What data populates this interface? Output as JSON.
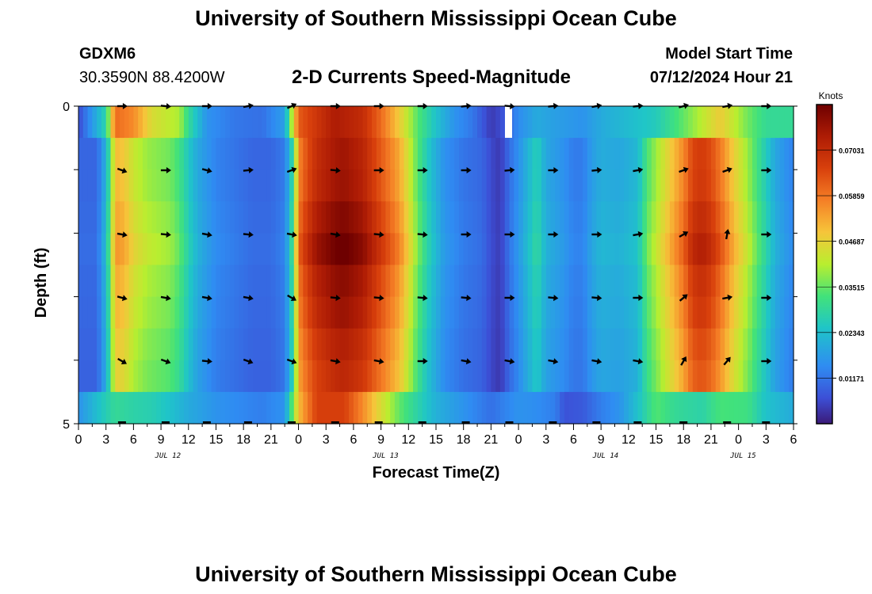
{
  "page": {
    "title": "University of Southern Mississippi Ocean Cube",
    "title_bottom": "University of Southern Mississippi Ocean Cube",
    "station_id": "GDXM6",
    "station_coords": "30.3590N  88.4200W",
    "model_start_label": "Model Start Time",
    "model_start_value": "07/12/2024 Hour 21",
    "subtitle": "2-D Currents Speed-Magnitude"
  },
  "chart_data": {
    "type": "heatmap",
    "title": "2-D Currents Speed-Magnitude",
    "xlabel": "Forecast Time(Z)",
    "ylabel": "Depth (ft)",
    "colorbar_label": "Knots",
    "colorbar_ticks": [
      "0.07031",
      "0.05859",
      "0.04687",
      "0.03515",
      "0.02343",
      "0.01171"
    ],
    "colorbar_values": [
      0.07031,
      0.05859,
      0.04687,
      0.03515,
      0.02343,
      0.01171
    ],
    "vmin": 0.0,
    "vmax": 0.082,
    "ylim": [
      0,
      5
    ],
    "y_ticks": [
      "0",
      "5"
    ],
    "x_ticks": [
      "0",
      "3",
      "6",
      "9",
      "12",
      "15",
      "18",
      "21",
      "0",
      "3",
      "6",
      "9",
      "12",
      "15",
      "18",
      "21",
      "0",
      "3",
      "6",
      "9",
      "12",
      "15",
      "18",
      "21",
      "0",
      "3",
      "6"
    ],
    "date_labels": [
      {
        "text": "JUL 12",
        "hour": 19.5
      },
      {
        "text": "JUL 13",
        "hour": 67
      },
      {
        "text": "JUL 14",
        "hour": 115
      },
      {
        "text": "JUL 15",
        "hour": 145
      }
    ],
    "hours_total": 156,
    "depth_levels": 10,
    "speed_profile": [
      [
        0,
        0.01
      ],
      [
        4,
        0.01
      ],
      [
        6,
        0.022
      ],
      [
        7,
        0.035
      ],
      [
        8,
        0.052
      ],
      [
        10,
        0.05
      ],
      [
        12,
        0.044
      ],
      [
        15,
        0.04
      ],
      [
        20,
        0.037
      ],
      [
        22,
        0.033
      ],
      [
        24,
        0.026
      ],
      [
        26,
        0.02
      ],
      [
        30,
        0.014
      ],
      [
        34,
        0.012
      ],
      [
        38,
        0.01
      ],
      [
        42,
        0.01
      ],
      [
        45,
        0.013
      ],
      [
        46,
        0.022
      ],
      [
        47,
        0.033
      ],
      [
        48,
        0.058
      ],
      [
        50,
        0.066
      ],
      [
        52,
        0.072
      ],
      [
        56,
        0.077
      ],
      [
        58,
        0.078
      ],
      [
        62,
        0.074
      ],
      [
        66,
        0.064
      ],
      [
        70,
        0.054
      ],
      [
        72,
        0.045
      ],
      [
        74,
        0.035
      ],
      [
        76,
        0.027
      ],
      [
        78,
        0.021
      ],
      [
        80,
        0.016
      ],
      [
        84,
        0.012
      ],
      [
        88,
        0.01
      ],
      [
        90,
        0.006
      ],
      [
        92,
        0.004
      ],
      [
        94,
        0.011
      ],
      [
        96,
        0.016
      ],
      [
        98,
        0.022
      ],
      [
        100,
        0.028
      ],
      [
        102,
        0.02
      ],
      [
        104,
        0.018
      ],
      [
        106,
        0.016
      ],
      [
        108,
        0.013
      ],
      [
        110,
        0.013
      ],
      [
        112,
        0.018
      ],
      [
        114,
        0.021
      ],
      [
        118,
        0.02
      ],
      [
        122,
        0.023
      ],
      [
        124,
        0.034
      ],
      [
        126,
        0.04
      ],
      [
        128,
        0.046
      ],
      [
        132,
        0.058
      ],
      [
        134,
        0.067
      ],
      [
        136,
        0.069
      ],
      [
        138,
        0.066
      ],
      [
        140,
        0.06
      ],
      [
        143,
        0.049
      ],
      [
        146,
        0.04
      ],
      [
        149,
        0.03
      ],
      [
        152,
        0.02
      ],
      [
        155,
        0.015
      ],
      [
        156,
        0.014
      ]
    ],
    "surface_profile": [
      [
        0,
        0.006
      ],
      [
        6,
        0.028
      ],
      [
        8,
        0.06
      ],
      [
        12,
        0.056
      ],
      [
        16,
        0.045
      ],
      [
        22,
        0.04
      ],
      [
        24,
        0.03
      ],
      [
        28,
        0.016
      ],
      [
        34,
        0.012
      ],
      [
        40,
        0.011
      ],
      [
        45,
        0.018
      ],
      [
        48,
        0.062
      ],
      [
        56,
        0.074
      ],
      [
        62,
        0.07
      ],
      [
        66,
        0.06
      ],
      [
        70,
        0.048
      ],
      [
        74,
        0.034
      ],
      [
        78,
        0.024
      ],
      [
        82,
        0.016
      ],
      [
        86,
        0.012
      ],
      [
        90,
        0.004
      ],
      [
        92,
        0.006
      ],
      [
        96,
        0.015
      ],
      [
        100,
        0.02
      ],
      [
        104,
        0.018
      ],
      [
        110,
        0.016
      ],
      [
        114,
        0.02
      ],
      [
        120,
        0.023
      ],
      [
        126,
        0.026
      ],
      [
        132,
        0.035
      ],
      [
        140,
        0.048
      ],
      [
        146,
        0.036
      ],
      [
        150,
        0.03
      ],
      [
        156,
        0.03
      ]
    ],
    "bottom_profile": [
      [
        0,
        0.016
      ],
      [
        5,
        0.025
      ],
      [
        8,
        0.03
      ],
      [
        12,
        0.028
      ],
      [
        16,
        0.027
      ],
      [
        20,
        0.024
      ],
      [
        24,
        0.02
      ],
      [
        30,
        0.016
      ],
      [
        40,
        0.013
      ],
      [
        45,
        0.016
      ],
      [
        48,
        0.05
      ],
      [
        52,
        0.066
      ],
      [
        58,
        0.066
      ],
      [
        62,
        0.056
      ],
      [
        66,
        0.045
      ],
      [
        70,
        0.035
      ],
      [
        74,
        0.028
      ],
      [
        78,
        0.021
      ],
      [
        84,
        0.016
      ],
      [
        90,
        0.011
      ],
      [
        96,
        0.016
      ],
      [
        100,
        0.015
      ],
      [
        104,
        0.013
      ],
      [
        106,
        0.007
      ],
      [
        110,
        0.008
      ],
      [
        114,
        0.013
      ],
      [
        118,
        0.016
      ],
      [
        122,
        0.024
      ],
      [
        126,
        0.034
      ],
      [
        130,
        0.03
      ],
      [
        136,
        0.028
      ],
      [
        140,
        0.033
      ],
      [
        146,
        0.032
      ],
      [
        150,
        0.024
      ],
      [
        156,
        0.02
      ]
    ],
    "arrow_columns": [
      {
        "hour": 9.5,
        "dirs": [
          0,
          20,
          10,
          15,
          30
        ]
      },
      {
        "hour": 19,
        "dirs": [
          5,
          0,
          5,
          10,
          20
        ]
      },
      {
        "hour": 28,
        "dirs": [
          0,
          15,
          10,
          10,
          5
        ]
      },
      {
        "hour": 37,
        "dirs": [
          -10,
          -5,
          5,
          10,
          20
        ]
      },
      {
        "hour": 46.5,
        "dirs": [
          -25,
          -20,
          10,
          30,
          20
        ]
      },
      {
        "hour": 56,
        "dirs": [
          0,
          5,
          10,
          5,
          10
        ]
      },
      {
        "hour": 65.5,
        "dirs": [
          0,
          0,
          5,
          5,
          10
        ]
      },
      {
        "hour": 75,
        "dirs": [
          0,
          0,
          5,
          5,
          0
        ]
      },
      {
        "hour": 84.5,
        "dirs": [
          -5,
          0,
          0,
          5,
          10
        ]
      },
      {
        "hour": 94,
        "dirs": [
          5,
          -5,
          0,
          0,
          10
        ]
      },
      {
        "hour": 103.5,
        "dirs": [
          -5,
          0,
          0,
          5,
          10
        ]
      },
      {
        "hour": 113,
        "dirs": [
          -10,
          -5,
          0,
          5,
          10
        ]
      },
      {
        "hour": 122,
        "dirs": [
          -5,
          -10,
          -10,
          0,
          10
        ]
      },
      {
        "hour": 132,
        "dirs": [
          -15,
          -20,
          -30,
          -40,
          -60
        ]
      },
      {
        "hour": 141.5,
        "dirs": [
          -10,
          -20,
          -80,
          -10,
          -50
        ]
      },
      {
        "hour": 150,
        "dirs": [
          0,
          0,
          0,
          0,
          0
        ]
      }
    ]
  }
}
